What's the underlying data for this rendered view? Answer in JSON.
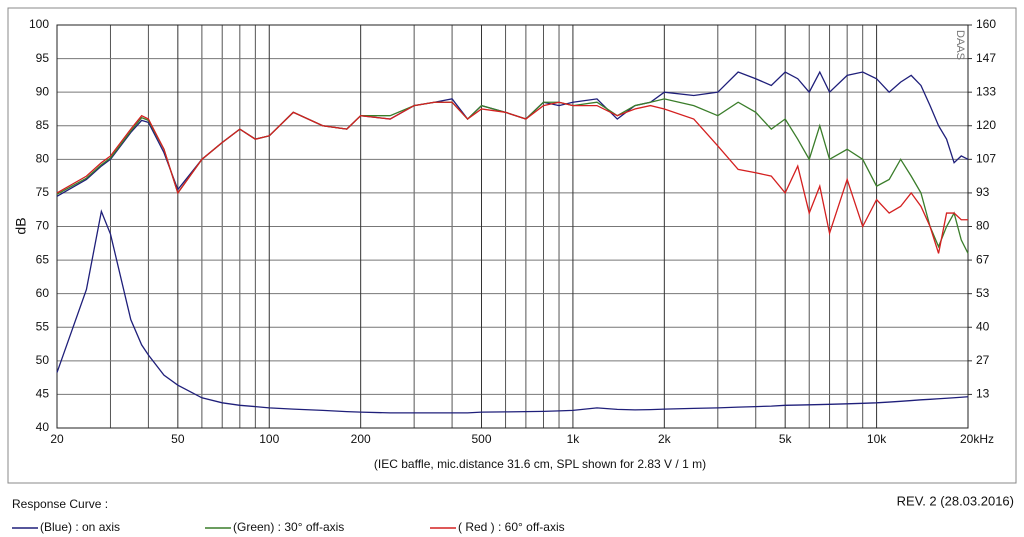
{
  "chart_data": {
    "type": "line",
    "ylabel": "dB",
    "note": "(IEC baffle, mic.distance 31.6 cm, SPL shown for 2.83 V / 1 m)",
    "legend_title": "Response Curve :",
    "revision": "REV. 2 (28.03.2016)",
    "watermark": "DAAS",
    "xscale": "log",
    "grid": true,
    "x": [
      20,
      25,
      28,
      30,
      35,
      38,
      40,
      45,
      50,
      60,
      70,
      80,
      90,
      100,
      120,
      150,
      180,
      200,
      250,
      300,
      350,
      400,
      450,
      500,
      600,
      700,
      800,
      900,
      1000,
      1200,
      1400,
      1600,
      1800,
      2000,
      2500,
      3000,
      3500,
      4000,
      4500,
      5000,
      5500,
      6000,
      6500,
      7000,
      8000,
      9000,
      10000,
      11000,
      12000,
      13000,
      14000,
      15000,
      16000,
      17000,
      18000,
      19000,
      20000
    ],
    "xlim": [
      20,
      20000
    ],
    "xticks": [
      20,
      50,
      100,
      200,
      500,
      {
        "value": 1000,
        "label": "1k"
      },
      {
        "value": 2000,
        "label": "2k"
      },
      {
        "value": 5000,
        "label": "5k"
      },
      {
        "value": 10000,
        "label": "10k"
      },
      {
        "value": 20000,
        "label": "20kHz"
      }
    ],
    "xminor": [
      30,
      40,
      60,
      70,
      80,
      90,
      300,
      400,
      600,
      700,
      800,
      900,
      3000,
      4000,
      6000,
      7000,
      8000,
      9000
    ],
    "ylim": [
      40,
      100
    ],
    "yticks": [
      40,
      45,
      50,
      55,
      60,
      65,
      70,
      75,
      80,
      85,
      90,
      95,
      100
    ],
    "y2lim": [
      0,
      160
    ],
    "y2ticks": [
      {
        "value": 13.333,
        "label": "13"
      },
      {
        "value": 26.667,
        "label": "27"
      },
      40,
      {
        "value": 53.333,
        "label": "53"
      },
      {
        "value": 66.667,
        "label": "67"
      },
      80,
      {
        "value": 93.333,
        "label": "93"
      },
      {
        "value": 106.667,
        "label": "107"
      },
      120,
      {
        "value": 133.333,
        "label": "133"
      },
      {
        "value": 146.667,
        "label": "147"
      },
      160
    ],
    "series": [
      {
        "name": "(Blue)  : on axis",
        "color": "#1f1f7a",
        "values": [
          74.5,
          77,
          79,
          80,
          84,
          85.8,
          85.5,
          81,
          75.5,
          80,
          82.5,
          84.5,
          83,
          83.5,
          87,
          85,
          84.5,
          86.5,
          86,
          88,
          88.5,
          89,
          86,
          88,
          87,
          86,
          88.5,
          88,
          88.5,
          89,
          86,
          88,
          88.5,
          90,
          89.5,
          90,
          93,
          92,
          91,
          93,
          92,
          90,
          93,
          90,
          92.5,
          93,
          92,
          90,
          91.5,
          92.5,
          91,
          88,
          85,
          83,
          79.5,
          80.5,
          80
        ]
      },
      {
        "name": "(Green) : 30° off-axis",
        "color": "#3a7d2a",
        "values": [
          74.8,
          77.2,
          79.2,
          80.2,
          84.2,
          86.2,
          85.8,
          81.5,
          75,
          80,
          82.5,
          84.5,
          83,
          83.5,
          87,
          85,
          84.5,
          86.5,
          86.5,
          88,
          88.5,
          88.5,
          86,
          88,
          87,
          86,
          88.5,
          88.5,
          88,
          88.5,
          86.5,
          88,
          88.5,
          89,
          88,
          86.5,
          88.5,
          87,
          84.5,
          86,
          83,
          80,
          85,
          80,
          81.5,
          80,
          76,
          77,
          80,
          77.5,
          75,
          70,
          67,
          70,
          72,
          68,
          66
        ]
      },
      {
        "name": "( Red ) : 60° off-axis",
        "color": "#d42020",
        "values": [
          75,
          77.5,
          79.5,
          80.5,
          84.5,
          86.5,
          86,
          81.5,
          75,
          80,
          82.5,
          84.5,
          83,
          83.5,
          87,
          85,
          84.5,
          86.5,
          86,
          88,
          88.5,
          88.5,
          86,
          87.5,
          87,
          86,
          88,
          88.5,
          88,
          88,
          86.5,
          87.5,
          88,
          87.5,
          86,
          82,
          78.5,
          78,
          77.5,
          75,
          79,
          72,
          76,
          69,
          77,
          70,
          74,
          72,
          73,
          75,
          73,
          70,
          66,
          72,
          72,
          71,
          71
        ]
      },
      {
        "color": "#1f1f7a",
        "axis": "y2",
        "values": [
          22,
          55,
          86,
          77,
          43,
          33,
          29,
          21,
          17,
          12,
          10,
          9,
          8.5,
          8,
          7.5,
          7,
          6.5,
          6.3,
          6,
          6,
          6,
          6,
          6,
          6.3,
          6.4,
          6.5,
          6.6,
          6.8,
          7,
          8,
          7.4,
          7.2,
          7.3,
          7.5,
          7.8,
          8,
          8.3,
          8.5,
          8.7,
          9,
          9.1,
          9.2,
          9.3,
          9.4,
          9.6,
          9.8,
          10,
          10.3,
          10.6,
          10.9,
          11.2,
          11.4,
          11.6,
          11.8,
          12,
          12.2,
          12.4
        ]
      }
    ]
  }
}
